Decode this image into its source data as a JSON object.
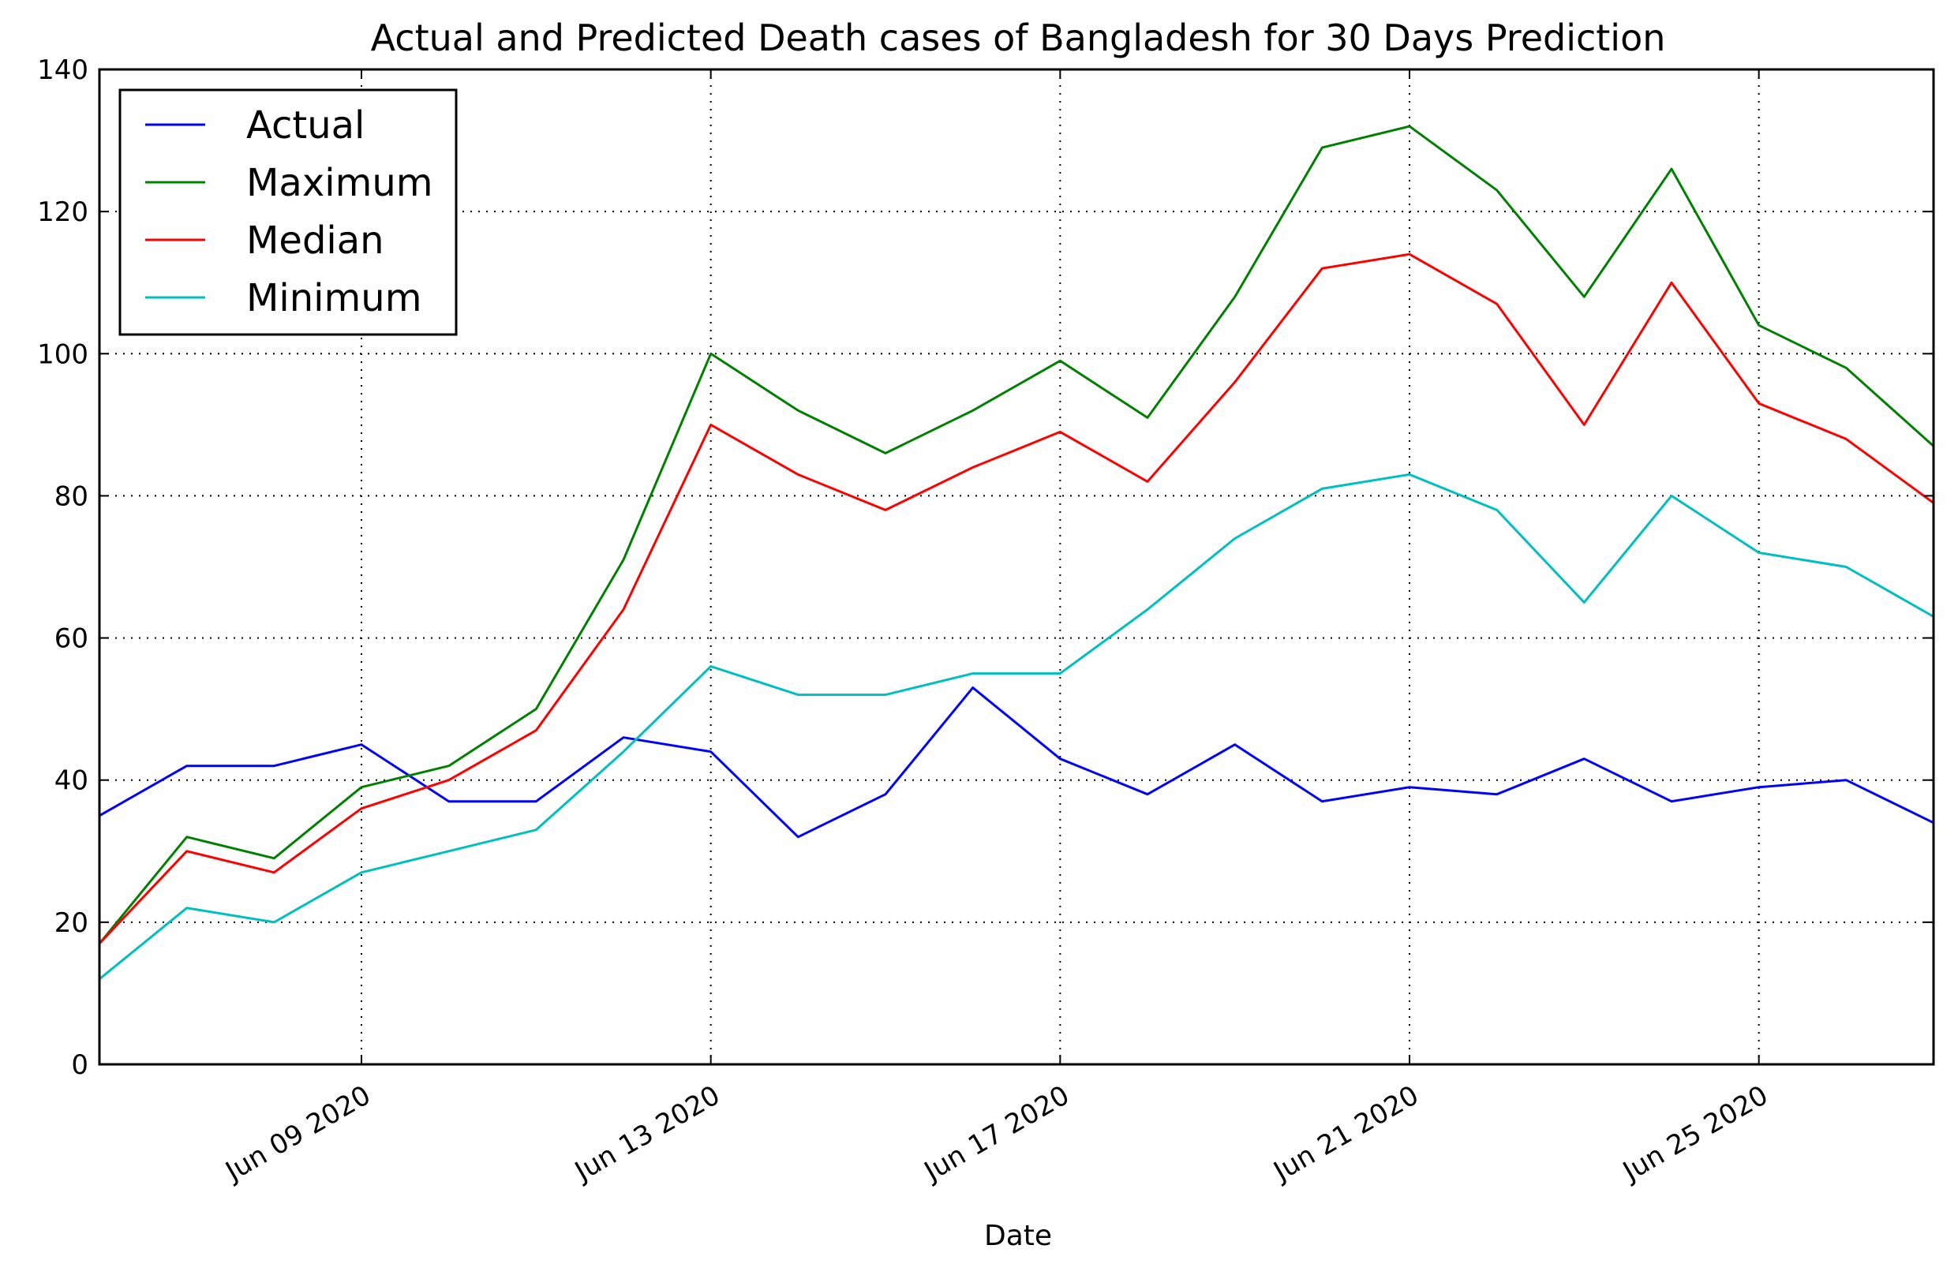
{
  "chart_data": {
    "type": "line",
    "title": "Actual and Predicted Death cases of Bangladesh for 30 Days Prediction",
    "xlabel": "Date",
    "ylabel": "",
    "x": [
      "2020-06-06",
      "2020-06-07",
      "2020-06-08",
      "2020-06-09",
      "2020-06-10",
      "2020-06-11",
      "2020-06-12",
      "2020-06-13",
      "2020-06-14",
      "2020-06-15",
      "2020-06-16",
      "2020-06-17",
      "2020-06-18",
      "2020-06-19",
      "2020-06-20",
      "2020-06-21",
      "2020-06-22",
      "2020-06-23",
      "2020-06-24",
      "2020-06-25",
      "2020-06-26",
      "2020-06-27"
    ],
    "xlim": [
      "2020-06-06",
      "2020-06-27"
    ],
    "ylim": [
      0,
      140
    ],
    "x_ticks": [
      {
        "value": "2020-06-09",
        "label": "Jun 09 2020"
      },
      {
        "value": "2020-06-13",
        "label": "Jun 13 2020"
      },
      {
        "value": "2020-06-17",
        "label": "Jun 17 2020"
      },
      {
        "value": "2020-06-21",
        "label": "Jun 21 2020"
      },
      {
        "value": "2020-06-25",
        "label": "Jun 25 2020"
      }
    ],
    "y_ticks": [
      0,
      20,
      40,
      60,
      80,
      100,
      120,
      140
    ],
    "grid": true,
    "legend_position": "top-left",
    "series": [
      {
        "name": "Actual",
        "color": "#0000ff",
        "values": [
          35,
          42,
          42,
          45,
          37,
          37,
          46,
          44,
          32,
          38,
          53,
          43,
          38,
          45,
          37,
          39,
          38,
          43,
          37,
          39,
          40,
          34
        ]
      },
      {
        "name": "Maximum",
        "color": "#008000",
        "values": [
          17,
          32,
          29,
          39,
          42,
          50,
          71,
          100,
          92,
          86,
          92,
          99,
          91,
          108,
          129,
          132,
          123,
          108,
          126,
          104,
          98,
          87
        ]
      },
      {
        "name": "Median",
        "color": "#ff0000",
        "values": [
          17,
          30,
          27,
          36,
          40,
          47,
          64,
          90,
          83,
          78,
          84,
          89,
          82,
          96,
          112,
          114,
          107,
          90,
          110,
          93,
          88,
          79
        ]
      },
      {
        "name": "Minimum",
        "color": "#00bfbf",
        "values": [
          12,
          22,
          20,
          27,
          30,
          33,
          44,
          56,
          52,
          52,
          55,
          55,
          64,
          74,
          81,
          83,
          78,
          65,
          80,
          72,
          70,
          63
        ]
      }
    ]
  }
}
